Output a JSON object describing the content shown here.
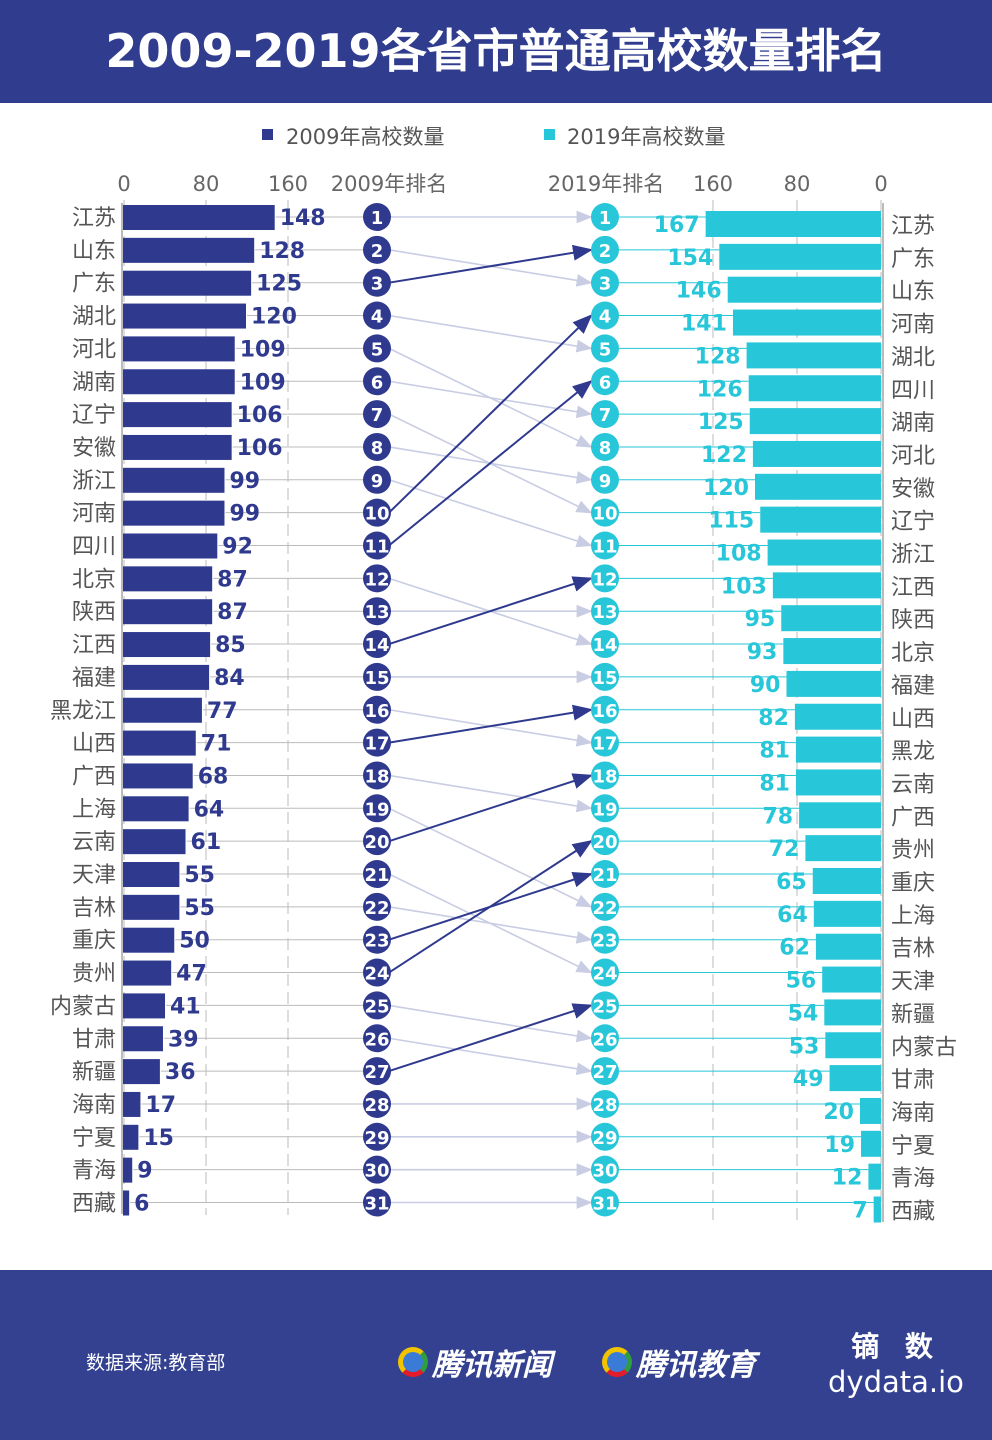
{
  "title": "2009-2019各省市普通高校数量排名",
  "colors": {
    "header": "#303d8e",
    "s2009": "#2f3a8f",
    "s2019": "#27c6d8",
    "riser_arrow": "#2f3a8f",
    "other_arrow": "#c9cde3"
  },
  "chart_data": {
    "type": "bar",
    "legend": [
      "2009年高校数量",
      "2019年高校数量"
    ],
    "legend_position": "top",
    "left_axis": {
      "ticks": [
        0,
        80,
        160
      ],
      "rank_label": "2009年排名"
    },
    "right_axis": {
      "ticks": [
        160,
        80,
        0
      ],
      "rank_label": "2019年排名"
    },
    "grid": true,
    "series2009": {
      "name": "2009年高校数量",
      "categories": [
        "江苏",
        "山东",
        "广东",
        "湖北",
        "河北",
        "湖南",
        "辽宁",
        "安徽",
        "浙江",
        "河南",
        "四川",
        "北京",
        "陕西",
        "江西",
        "福建",
        "黑龙江",
        "山西",
        "广西",
        "上海",
        "云南",
        "天津",
        "吉林",
        "重庆",
        "贵州",
        "内蒙古",
        "甘肃",
        "新疆",
        "海南",
        "宁夏",
        "青海",
        "西藏"
      ],
      "values": [
        148,
        128,
        125,
        120,
        109,
        109,
        106,
        106,
        99,
        99,
        92,
        87,
        87,
        85,
        84,
        77,
        71,
        68,
        64,
        61,
        55,
        55,
        50,
        47,
        41,
        39,
        36,
        17,
        15,
        9,
        6
      ]
    },
    "series2019": {
      "name": "2019年高校数量",
      "categories": [
        "江苏",
        "广东",
        "山东",
        "河南",
        "湖北",
        "四川",
        "湖南",
        "河北",
        "安徽",
        "辽宁",
        "浙江",
        "江西",
        "陕西",
        "北京",
        "福建",
        "山西",
        "黑龙",
        "云南",
        "广西",
        "贵州",
        "重庆",
        "上海",
        "吉林",
        "天津",
        "新疆",
        "内蒙古",
        "甘肃",
        "海南",
        "宁夏",
        "青海",
        "西藏"
      ],
      "values": [
        167,
        154,
        146,
        141,
        128,
        126,
        125,
        122,
        120,
        115,
        108,
        103,
        95,
        93,
        90,
        82,
        81,
        81,
        78,
        72,
        65,
        64,
        62,
        56,
        54,
        53,
        49,
        20,
        19,
        12,
        7
      ]
    }
  },
  "footer": {
    "source": "数据来源:教育部",
    "logo1": "腾讯新闻",
    "logo2": "腾讯教育",
    "brand_cn": "镝 数",
    "brand_en": "dydata.io"
  }
}
